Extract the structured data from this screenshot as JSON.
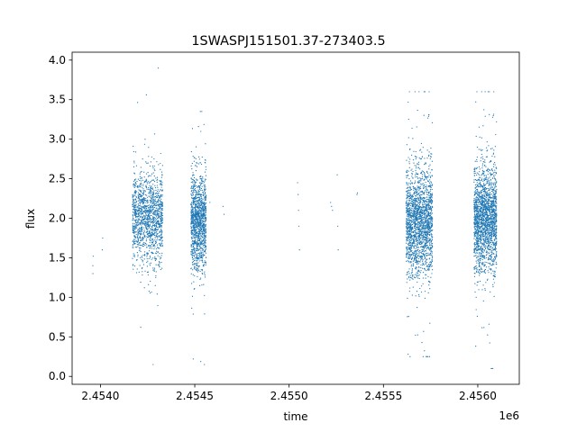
{
  "chart_data": {
    "type": "scatter",
    "title": "1SWASPJ151501.37-273403.5",
    "xlabel": "time",
    "ylabel": "flux",
    "x_offset_label": "1e6",
    "xlim": [
      2453850,
      2456220
    ],
    "ylim": [
      -0.1,
      4.1
    ],
    "x_ticks": [
      2454000,
      2454500,
      2455000,
      2455500,
      2456000
    ],
    "x_tick_labels": [
      "2.4540",
      "2.4545",
      "2.4550",
      "2.4555",
      "2.4560"
    ],
    "y_ticks": [
      0.0,
      0.5,
      1.0,
      1.5,
      2.0,
      2.5,
      3.0,
      3.5,
      4.0
    ],
    "y_tick_labels": [
      "0.0",
      "0.5",
      "1.0",
      "1.5",
      "2.0",
      "2.5",
      "3.0",
      "3.5",
      "4.0"
    ],
    "grid": false,
    "marker_color": "#1f77b4",
    "seasons": [
      {
        "x_start": 2454170,
        "x_end": 2454330,
        "y_center": 2.0,
        "y_spread": 0.28,
        "y_min": 0.15,
        "y_max": 3.95,
        "density": 1.0
      },
      {
        "x_start": 2454480,
        "x_end": 2454560,
        "y_center": 1.95,
        "y_spread": 0.3,
        "y_min": 0.15,
        "y_max": 3.35,
        "density": 0.9
      },
      {
        "x_start": 2455620,
        "x_end": 2455760,
        "y_center": 1.95,
        "y_spread": 0.33,
        "y_min": 0.25,
        "y_max": 3.6,
        "density": 1.4
      },
      {
        "x_start": 2455980,
        "x_end": 2456100,
        "y_center": 2.0,
        "y_spread": 0.32,
        "y_min": 0.1,
        "y_max": 3.6,
        "density": 1.4
      }
    ],
    "sparse_points": [
      {
        "x": 2453960,
        "y": 1.3
      },
      {
        "x": 2453960,
        "y": 1.4
      },
      {
        "x": 2453962,
        "y": 1.52
      },
      {
        "x": 2454010,
        "y": 1.6
      },
      {
        "x": 2454012,
        "y": 1.75
      },
      {
        "x": 2454560,
        "y": 2.1
      },
      {
        "x": 2454580,
        "y": 2.2
      },
      {
        "x": 2454650,
        "y": 2.15
      },
      {
        "x": 2454655,
        "y": 2.05
      },
      {
        "x": 2455045,
        "y": 2.45
      },
      {
        "x": 2455048,
        "y": 2.3
      },
      {
        "x": 2455050,
        "y": 2.1
      },
      {
        "x": 2455052,
        "y": 1.9
      },
      {
        "x": 2455055,
        "y": 1.6
      },
      {
        "x": 2455220,
        "y": 2.2
      },
      {
        "x": 2455225,
        "y": 2.15
      },
      {
        "x": 2455230,
        "y": 2.1
      },
      {
        "x": 2455255,
        "y": 2.55
      },
      {
        "x": 2455258,
        "y": 1.9
      },
      {
        "x": 2455260,
        "y": 1.6
      },
      {
        "x": 2455360,
        "y": 2.3
      },
      {
        "x": 2455362,
        "y": 2.32
      }
    ]
  }
}
